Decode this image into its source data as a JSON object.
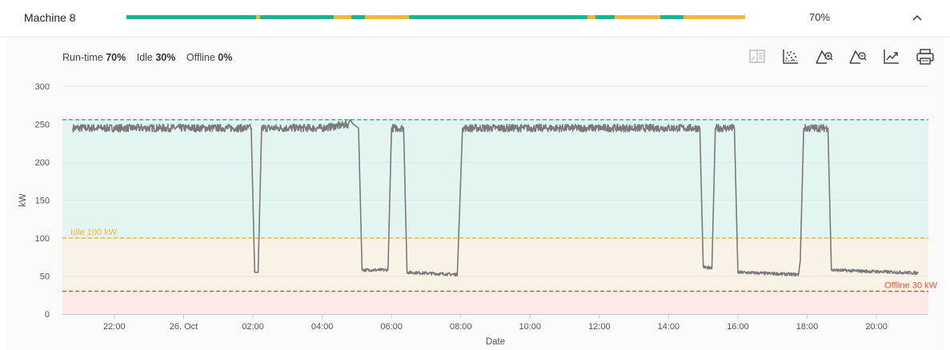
{
  "header": {
    "machine_name": "Machine 8",
    "percent": "70%",
    "timeline": [
      {
        "state": "run",
        "from": 0,
        "to": 0.209
      },
      {
        "state": "idle",
        "from": 0.209,
        "to": 0.216
      },
      {
        "state": "run",
        "from": 0.216,
        "to": 0.335
      },
      {
        "state": "idle",
        "from": 0.335,
        "to": 0.364
      },
      {
        "state": "run",
        "from": 0.364,
        "to": 0.385
      },
      {
        "state": "idle",
        "from": 0.385,
        "to": 0.457
      },
      {
        "state": "run",
        "from": 0.457,
        "to": 0.745
      },
      {
        "state": "idle",
        "from": 0.745,
        "to": 0.758
      },
      {
        "state": "run",
        "from": 0.758,
        "to": 0.789
      },
      {
        "state": "idle",
        "from": 0.789,
        "to": 0.863
      },
      {
        "state": "run",
        "from": 0.863,
        "to": 0.901
      },
      {
        "state": "idle",
        "from": 0.901,
        "to": 1.0
      }
    ]
  },
  "stats": {
    "runtime_label": "Run-time",
    "runtime_value": "70%",
    "idle_label": "Idle",
    "idle_value": "30%",
    "offline_label": "Offline",
    "offline_value": "0%"
  },
  "toolbar": [
    "compare-icon",
    "scatter-icon",
    "zoom-in-icon",
    "zoom-out-icon",
    "trend-icon",
    "print-icon"
  ],
  "colors": {
    "run": "#1ab394",
    "idle": "#f0b83a",
    "offline": "#e8503a",
    "run_band": "#e3f5f0",
    "idle_band": "#f8f3e6",
    "offline_band": "#fce9e8",
    "line": "#7a7a7a"
  },
  "chart_data": {
    "type": "line",
    "xlabel": "Date",
    "ylabel": "kW",
    "ylim": [
      0,
      300
    ],
    "yticks": [
      0,
      50,
      100,
      150,
      200,
      250,
      300
    ],
    "xlim_hours": [
      -3.5,
      21.5
    ],
    "xticks": [
      {
        "h": -2,
        "label": "22:00"
      },
      {
        "h": 0,
        "label": "26. Oct"
      },
      {
        "h": 2,
        "label": "02:00"
      },
      {
        "h": 4,
        "label": "04:00"
      },
      {
        "h": 6,
        "label": "06:00"
      },
      {
        "h": 8,
        "label": "08:00"
      },
      {
        "h": 10,
        "label": "10:00"
      },
      {
        "h": 12,
        "label": "12:00"
      },
      {
        "h": 14,
        "label": "14:00"
      },
      {
        "h": 16,
        "label": "16:00"
      },
      {
        "h": 18,
        "label": "18:00"
      },
      {
        "h": 20,
        "label": "20:00"
      }
    ],
    "thresholds": [
      {
        "name": "run",
        "value": 256,
        "label": ""
      },
      {
        "name": "idle",
        "value": 100,
        "label": "Idle 100 kW"
      },
      {
        "name": "offline",
        "value": 30,
        "label": "Offline 30 kW"
      }
    ],
    "series": [
      {
        "points": [
          [
            -3.2,
            245
          ],
          [
            1.95,
            245
          ],
          [
            2.05,
            55
          ],
          [
            2.15,
            55
          ],
          [
            2.25,
            245
          ],
          [
            4.0,
            245
          ],
          [
            4.75,
            250
          ],
          [
            4.8,
            256
          ],
          [
            4.9,
            250
          ],
          [
            5.05,
            245
          ],
          [
            5.15,
            58
          ],
          [
            5.9,
            58
          ],
          [
            6.0,
            245
          ],
          [
            6.35,
            245
          ],
          [
            6.45,
            55
          ],
          [
            7.9,
            52
          ],
          [
            8.05,
            245
          ],
          [
            14.9,
            245
          ],
          [
            15.0,
            62
          ],
          [
            15.25,
            60
          ],
          [
            15.35,
            245
          ],
          [
            15.9,
            245
          ],
          [
            16.0,
            55
          ],
          [
            17.75,
            52
          ],
          [
            17.8,
            70
          ],
          [
            17.9,
            245
          ],
          [
            18.6,
            245
          ],
          [
            18.7,
            58
          ],
          [
            21.2,
            54
          ]
        ]
      }
    ]
  }
}
